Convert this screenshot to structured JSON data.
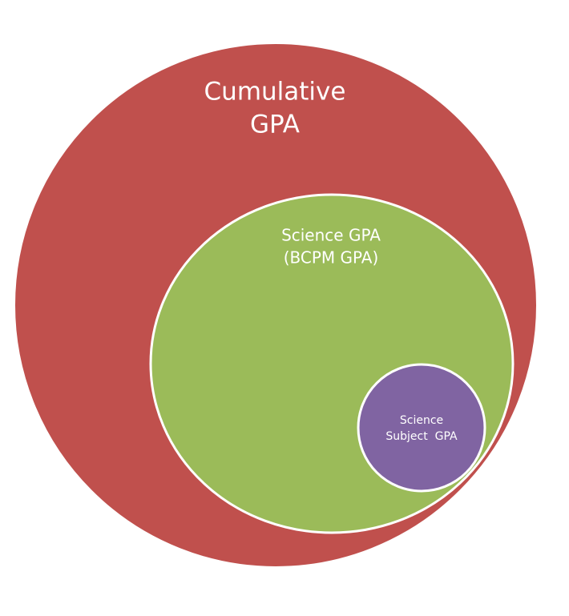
{
  "nodes": [
    {
      "lines": [
        "Cumulative",
        "GPA"
      ]
    },
    {
      "lines": [
        "Science GPA",
        "(BCPM GPA)"
      ]
    },
    {
      "lines": [
        "Science",
        "Subject  GPA"
      ]
    }
  ]
}
